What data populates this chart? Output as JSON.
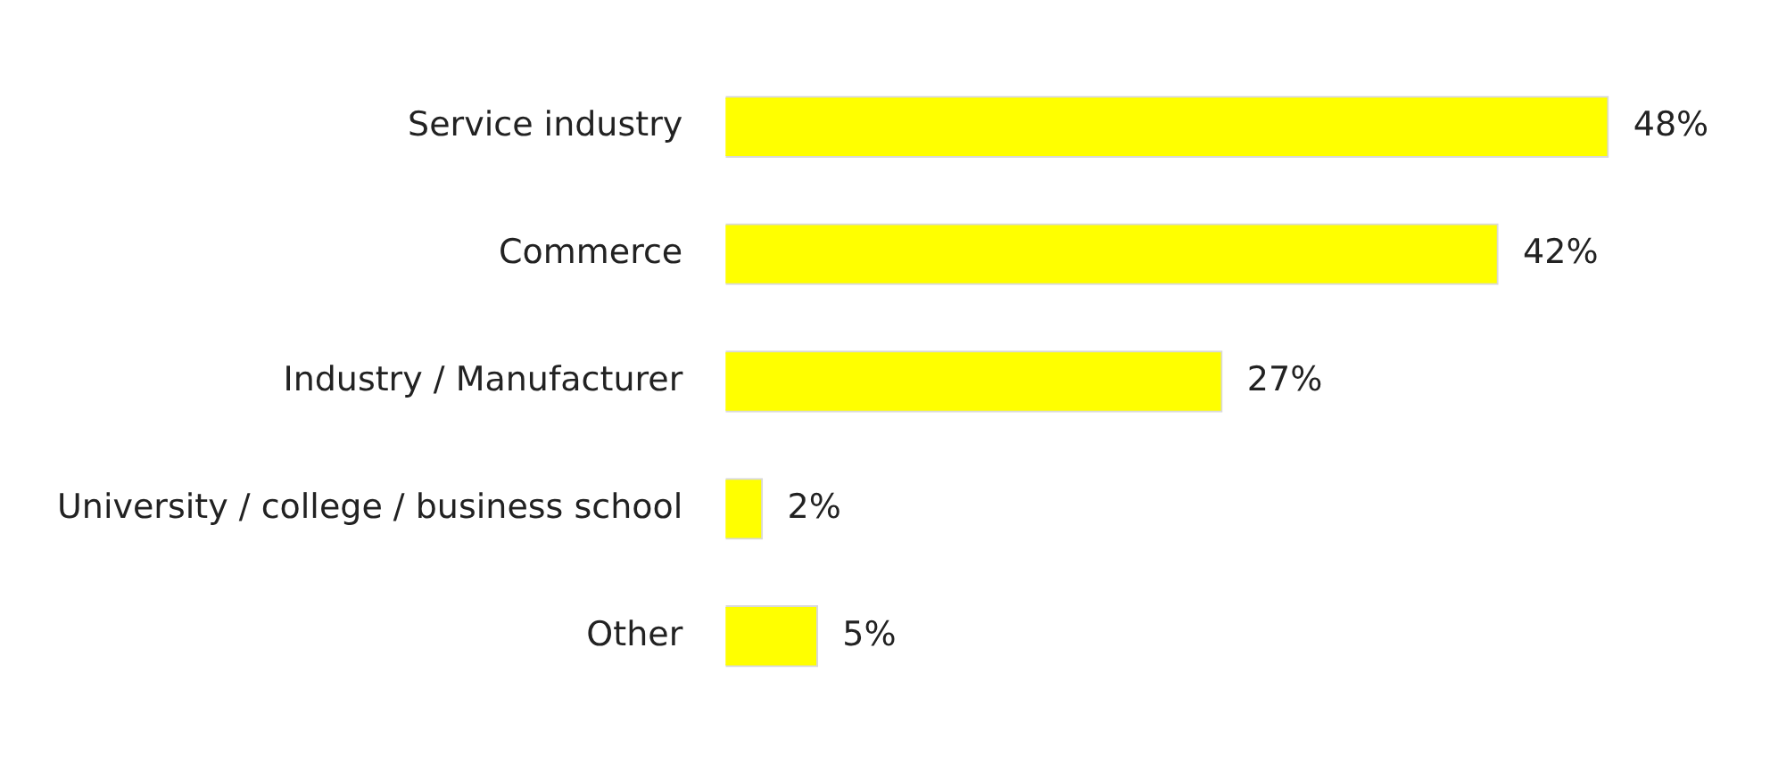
{
  "chart_data": {
    "type": "bar",
    "orientation": "horizontal",
    "categories": [
      "Service industry",
      "Commerce",
      "Industry / Manufacturer",
      "University / college / business school",
      "Other"
    ],
    "values": [
      48,
      42,
      27,
      2,
      5
    ],
    "value_labels": [
      "48%",
      "42%",
      "27%",
      "2%",
      "5%"
    ],
    "color": "#ffff00",
    "grid": false,
    "tick_labels": "y",
    "legend": false
  }
}
